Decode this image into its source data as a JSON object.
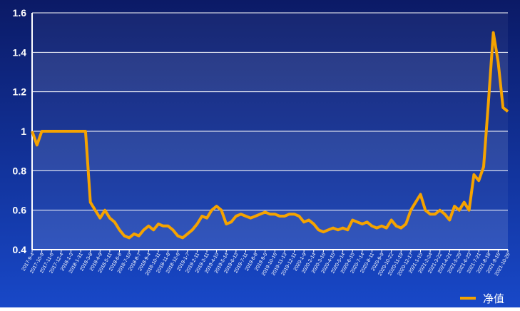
{
  "chart_data": {
    "type": "line",
    "categories": [
      "2017-9-4",
      null,
      "2017-10-9",
      null,
      "2017-11-6",
      null,
      "2017-12-4",
      null,
      "2018-1-3",
      null,
      "2018-1-31",
      null,
      "2018-3-8",
      null,
      "2018-4-9",
      null,
      "2018-5-11",
      null,
      "2018-6-8",
      null,
      "2018-7-10",
      null,
      "2018-8-7",
      null,
      "2018-9-4",
      null,
      "2018-10-11",
      null,
      "2018-11-8",
      null,
      "2018-12-6",
      null,
      "2019-1-7",
      null,
      "2019-2-11",
      null,
      "2019-3-11",
      null,
      "2019-4-10",
      null,
      "2019-5-14",
      null,
      "2019-6-13",
      null,
      "2019-7-11",
      null,
      "2019-8-8",
      null,
      "2019-9-5",
      null,
      "2019-10-16",
      null,
      "2019-11-13",
      null,
      "2019-12-11",
      null,
      "2020-1-9",
      null,
      "2020-2-14",
      null,
      "2020-3-16",
      null,
      "2020-4-15",
      null,
      "2020-5-14",
      null,
      "2020-6-15",
      null,
      "2020-7-14",
      null,
      "2020-8-11",
      null,
      "2020-9-9",
      null,
      "2020-10-22",
      null,
      "2020-11-19",
      null,
      "2020-12-17",
      null,
      "2021-1-15",
      null,
      "2021-2-24",
      null,
      "2021-3-22",
      null,
      "2021-4-21",
      null,
      "2021-5-25",
      null,
      "2021-6-23",
      null,
      "2021-7-21",
      null,
      "2021-8-18",
      null,
      "2021-9-16",
      null,
      "2021-10-26"
    ],
    "series": [
      {
        "name": "净值",
        "color": "#f5a300",
        "values": [
          1.0,
          0.93,
          1.0,
          1.0,
          1.0,
          1.0,
          1.0,
          1.0,
          1.0,
          1.0,
          1.0,
          1.0,
          0.64,
          0.6,
          0.56,
          0.6,
          0.56,
          0.54,
          0.5,
          0.47,
          0.46,
          0.48,
          0.47,
          0.5,
          0.52,
          0.5,
          0.53,
          0.52,
          0.52,
          0.5,
          0.47,
          0.46,
          0.48,
          0.5,
          0.53,
          0.57,
          0.56,
          0.6,
          0.62,
          0.6,
          0.53,
          0.54,
          0.57,
          0.58,
          0.57,
          0.56,
          0.57,
          0.58,
          0.59,
          0.58,
          0.58,
          0.57,
          0.57,
          0.58,
          0.58,
          0.57,
          0.54,
          0.55,
          0.53,
          0.5,
          0.49,
          0.5,
          0.51,
          0.5,
          0.51,
          0.5,
          0.55,
          0.54,
          0.53,
          0.54,
          0.52,
          0.51,
          0.52,
          0.51,
          0.55,
          0.52,
          0.51,
          0.53,
          0.6,
          0.64,
          0.68,
          0.6,
          0.58,
          0.58,
          0.6,
          0.58,
          0.55,
          0.62,
          0.6,
          0.64,
          0.6,
          0.78,
          0.75,
          0.82,
          1.15,
          1.5,
          1.35,
          1.12,
          1.1
        ]
      }
    ],
    "ylim": [
      0.4,
      1.6
    ],
    "yticks": [
      0.4,
      0.6,
      0.8,
      1,
      1.2,
      1.4,
      1.6
    ],
    "grid": true,
    "legend": "bottom-right"
  }
}
